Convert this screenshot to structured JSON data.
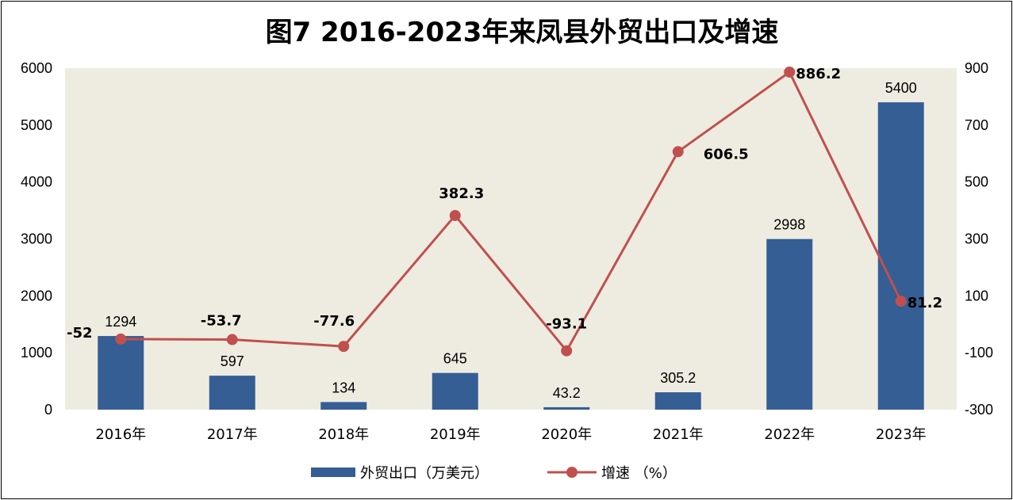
{
  "chart_data": {
    "type": "bar",
    "title": "图7  2016-2023年来凤县外贸出口及增速",
    "categories": [
      "2016年",
      "2017年",
      "2018年",
      "2019年",
      "2020年",
      "2021年",
      "2022年",
      "2023年"
    ],
    "series": [
      {
        "name": "外贸出口（万美元）",
        "type": "bar",
        "axis": "left",
        "color": "#355E94",
        "values": [
          1294,
          597,
          134,
          645,
          43.2,
          305.2,
          2998,
          5400
        ],
        "labels": [
          "1294",
          "597",
          "134",
          "645",
          "43.2",
          "305.2",
          "2998",
          "5400"
        ]
      },
      {
        "name": "增速 （%）",
        "type": "line",
        "axis": "right",
        "color": "#C0504D",
        "values": [
          -52,
          -53.7,
          -77.6,
          382.3,
          -93.1,
          606.5,
          886.2,
          81.2
        ],
        "labels": [
          "-52",
          "-53.7",
          "-77.6",
          "382.3",
          "-93.1",
          "606.5",
          "886.2",
          "81.2"
        ]
      }
    ],
    "y_left": {
      "min": 0,
      "max": 6000,
      "ticks": [
        "0",
        "1000",
        "2000",
        "3000",
        "4000",
        "5000",
        "6000"
      ]
    },
    "y_right": {
      "min": -300,
      "max": 900,
      "ticks": [
        "-300",
        "-100",
        "100",
        "300",
        "500",
        "700",
        "900"
      ]
    },
    "grid": false,
    "legend_position": "bottom",
    "plot_background": "#EEECE1"
  }
}
